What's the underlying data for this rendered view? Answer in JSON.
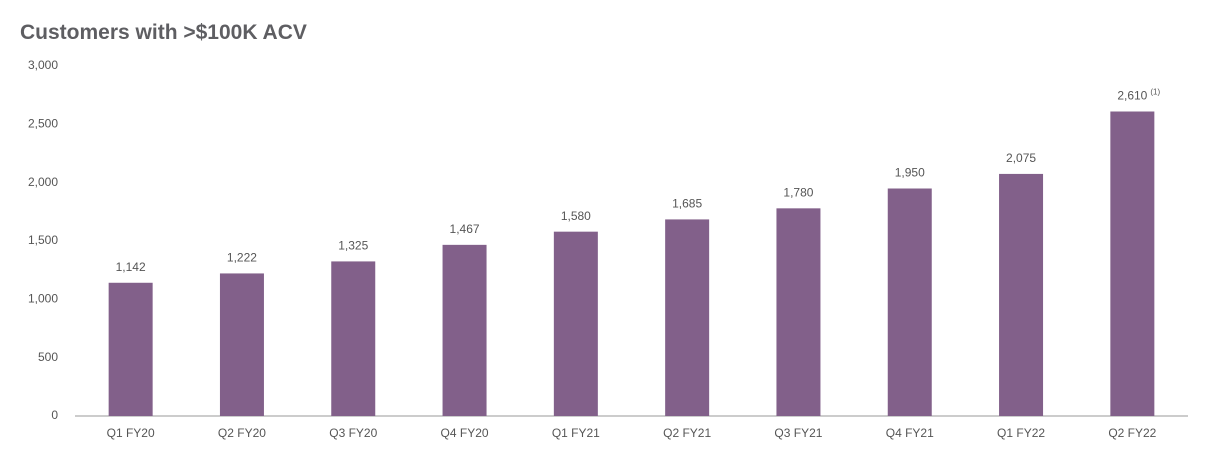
{
  "chart_data": {
    "type": "bar",
    "title": "Customers with >$100K ACV",
    "categories": [
      "Q1 FY20",
      "Q2 FY20",
      "Q3 FY20",
      "Q4 FY20",
      "Q1 FY21",
      "Q2 FY21",
      "Q3 FY21",
      "Q4 FY21",
      "Q1 FY22",
      "Q2 FY22"
    ],
    "values": [
      1142,
      1222,
      1325,
      1467,
      1580,
      1685,
      1780,
      1950,
      2075,
      2610
    ],
    "value_labels": [
      "1,142",
      "1,222",
      "1,325",
      "1,467",
      "1,580",
      "1,685",
      "1,780",
      "1,950",
      "2,075",
      "2,610"
    ],
    "footnote_marker": "(1)",
    "color": "#82608a",
    "ylim": [
      0,
      3000
    ],
    "yticks": [
      0,
      500,
      {
        "value": 1000,
        "label": "1,000"
      },
      {
        "value": 1500,
        "label": "1,500"
      },
      {
        "value": 2000,
        "label": "2,000"
      },
      {
        "value": 2500,
        "label": "2,500"
      },
      {
        "value": 3000,
        "label": "3,000"
      }
    ],
    "grid": false
  }
}
